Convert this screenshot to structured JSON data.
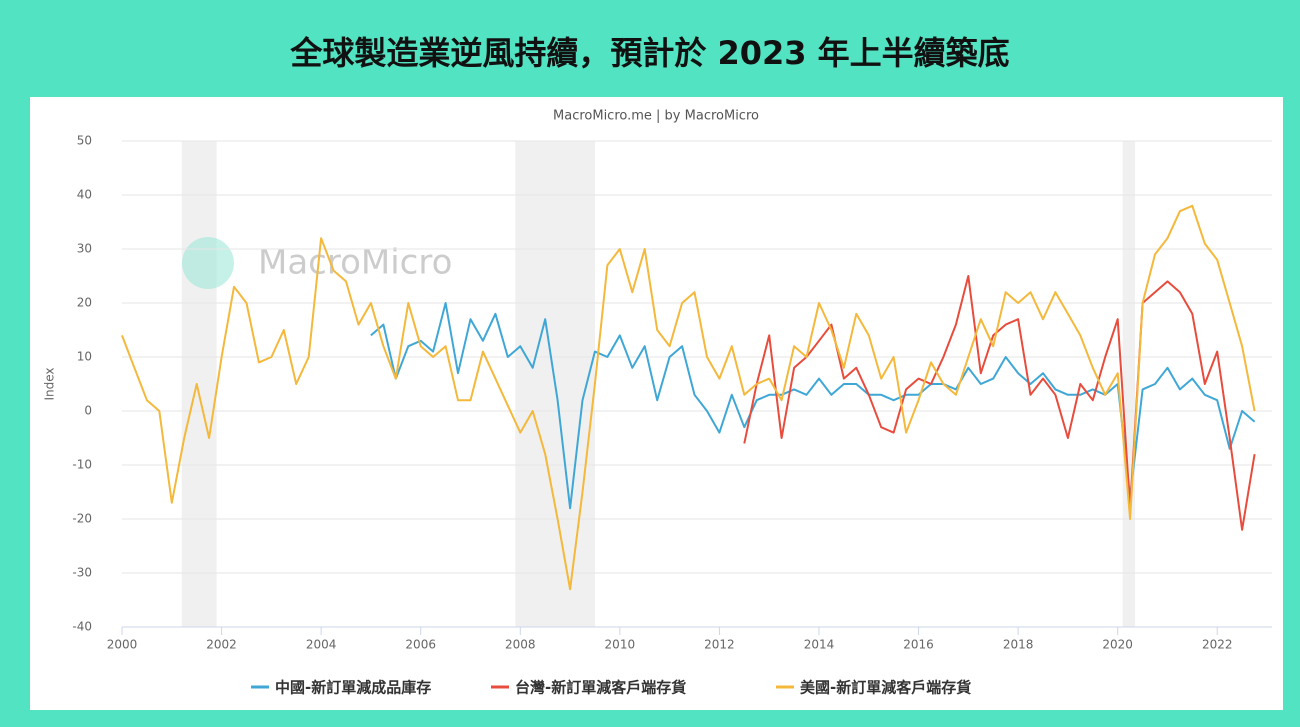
{
  "chart_data": {
    "type": "line",
    "title": "全球製造業逆風持續，預計於 2023 年上半續築底",
    "subtitle": "MacroMicro.me | by MacroMicro",
    "watermark": "MacroMicro",
    "ylabel": "Index",
    "x": [
      2000,
      2000.25,
      2000.5,
      2000.75,
      2001,
      2001.25,
      2001.5,
      2001.75,
      2002,
      2002.25,
      2002.5,
      2002.75,
      2003,
      2003.25,
      2003.5,
      2003.75,
      2004,
      2004.25,
      2004.5,
      2004.75,
      2005,
      2005.25,
      2005.5,
      2005.75,
      2006,
      2006.25,
      2006.5,
      2006.75,
      2007,
      2007.25,
      2007.5,
      2007.75,
      2008,
      2008.25,
      2008.5,
      2008.75,
      2009,
      2009.25,
      2009.5,
      2009.75,
      2010,
      2010.25,
      2010.5,
      2010.75,
      2011,
      2011.25,
      2011.5,
      2011.75,
      2012,
      2012.25,
      2012.5,
      2012.75,
      2013,
      2013.25,
      2013.5,
      2013.75,
      2014,
      2014.25,
      2014.5,
      2014.75,
      2015,
      2015.25,
      2015.5,
      2015.75,
      2016,
      2016.25,
      2016.5,
      2016.75,
      2017,
      2017.25,
      2017.5,
      2017.75,
      2018,
      2018.25,
      2018.5,
      2018.75,
      2019,
      2019.25,
      2019.5,
      2019.75,
      2020,
      2020.25,
      2020.5,
      2020.75,
      2021,
      2021.25,
      2021.5,
      2021.75,
      2022,
      2022.25,
      2022.5,
      2022.75
    ],
    "series": [
      {
        "name": "中國-新訂單減成品庫存",
        "color": "#3fa7d6",
        "values": [
          null,
          null,
          null,
          null,
          null,
          null,
          null,
          null,
          null,
          null,
          null,
          null,
          null,
          null,
          null,
          null,
          null,
          null,
          null,
          null,
          14,
          16,
          6,
          12,
          13,
          11,
          20,
          7,
          17,
          13,
          18,
          10,
          12,
          8,
          17,
          2,
          -18,
          2,
          11,
          10,
          14,
          8,
          12,
          2,
          10,
          12,
          3,
          0,
          -4,
          3,
          -3,
          2,
          3,
          3,
          4,
          3,
          6,
          3,
          5,
          5,
          3,
          3,
          2,
          3,
          3,
          5,
          5,
          4,
          8,
          5,
          6,
          10,
          7,
          5,
          7,
          4,
          3,
          3,
          4,
          3,
          5,
          -16,
          4,
          5,
          8,
          4,
          6,
          3,
          2,
          -7,
          0,
          -2
        ]
      },
      {
        "name": "台灣-新訂單減客戶端存貨",
        "color": "#e74c3c",
        "values": [
          null,
          null,
          null,
          null,
          null,
          null,
          null,
          null,
          null,
          null,
          null,
          null,
          null,
          null,
          null,
          null,
          null,
          null,
          null,
          null,
          null,
          null,
          null,
          null,
          null,
          null,
          null,
          null,
          null,
          null,
          null,
          null,
          null,
          null,
          null,
          null,
          null,
          null,
          null,
          null,
          null,
          null,
          null,
          null,
          null,
          null,
          null,
          null,
          null,
          null,
          -6,
          5,
          14,
          -5,
          8,
          10,
          13,
          16,
          6,
          8,
          3,
          -3,
          -4,
          4,
          6,
          5,
          10,
          16,
          25,
          7,
          14,
          16,
          17,
          3,
          6,
          3,
          -5,
          5,
          2,
          10,
          17,
          -18,
          20,
          22,
          24,
          22,
          18,
          5,
          11,
          -5,
          -22,
          -8
        ]
      },
      {
        "name": "美國-新訂單減客戶端存貨",
        "color": "#f4b83b",
        "values": [
          14,
          8,
          2,
          0,
          -17,
          -5,
          5,
          -5,
          10,
          23,
          20,
          9,
          10,
          15,
          5,
          10,
          32,
          26,
          24,
          16,
          20,
          12,
          6,
          20,
          12,
          10,
          12,
          2,
          2,
          11,
          6,
          1,
          -4,
          0,
          -8,
          -20,
          -33,
          -15,
          5,
          27,
          30,
          22,
          30,
          15,
          12,
          20,
          22,
          10,
          6,
          12,
          3,
          5,
          6,
          2,
          12,
          10,
          20,
          15,
          8,
          18,
          14,
          6,
          10,
          -4,
          2,
          9,
          5,
          3,
          10,
          17,
          12,
          22,
          20,
          22,
          17,
          22,
          18,
          14,
          8,
          3,
          7,
          -20,
          20,
          29,
          32,
          37,
          38,
          31,
          28,
          20,
          12,
          0
        ]
      }
    ],
    "recessions": [
      [
        2001.2,
        2001.9
      ],
      [
        2007.9,
        2009.5
      ],
      [
        2020.1,
        2020.35
      ]
    ],
    "xlim": [
      2000,
      2023.1
    ],
    "xticks": [
      2000,
      2002,
      2004,
      2006,
      2008,
      2010,
      2012,
      2014,
      2016,
      2018,
      2020,
      2022
    ],
    "ylim": [
      -40,
      50
    ],
    "yticks": [
      -40,
      -30,
      -20,
      -10,
      0,
      10,
      20,
      30,
      40,
      50
    ],
    "grid": true,
    "legend": "bottom"
  }
}
